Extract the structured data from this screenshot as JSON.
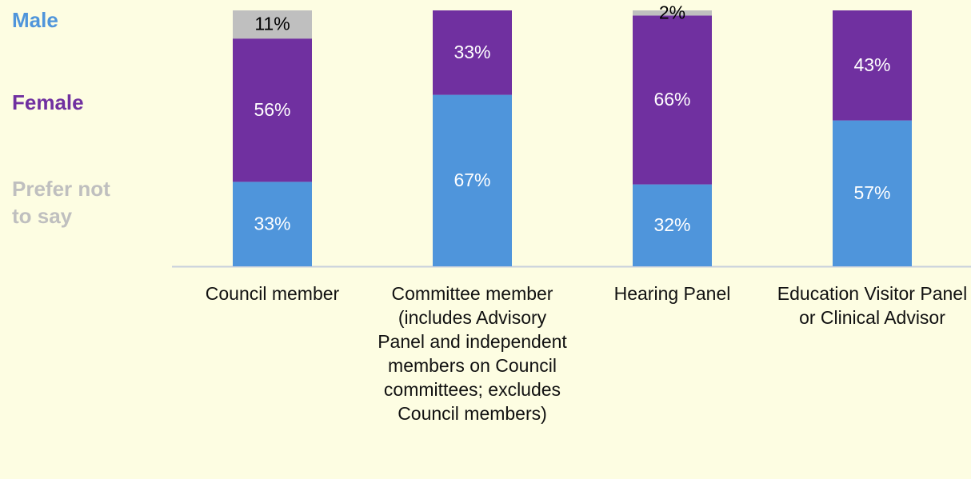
{
  "chart_data": {
    "type": "stacked-bar",
    "categories": [
      "Council member",
      "Committee member (includes Advisory Panel and independent members on Council committees; excludes Council members)",
      "Hearing Panel",
      "Education Visitor Panel or Clinical Advisor"
    ],
    "ylim": [
      0,
      100
    ],
    "series": [
      {
        "name": "Male",
        "color": "#4f95db",
        "label_color": "#ffffff",
        "values": [
          33,
          67,
          32,
          57
        ],
        "value_labels": [
          "33%",
          "67%",
          "32%",
          "57%"
        ]
      },
      {
        "name": "Female",
        "color": "#7030a0",
        "label_color": "#ffffff",
        "values": [
          56,
          33,
          66,
          43
        ],
        "value_labels": [
          "56%",
          "33%",
          "66%",
          "43%"
        ]
      },
      {
        "name": "Prefer not to say",
        "color": "#bfbfbf",
        "label_color": "#000000",
        "values": [
          11,
          null,
          2,
          null
        ],
        "value_labels": [
          "11%",
          null,
          "2%",
          null
        ]
      }
    ]
  }
}
